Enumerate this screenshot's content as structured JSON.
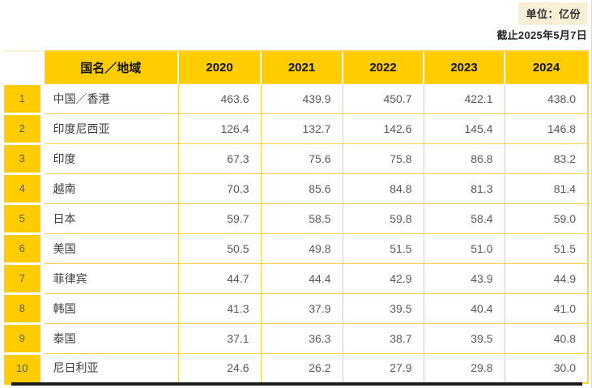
{
  "meta": {
    "unit_label": "单位：亿份",
    "as_of_label": "截止2025年5月7日"
  },
  "table": {
    "corner": "",
    "name_header": "国名／地域",
    "year_headers": [
      "2020",
      "2021",
      "2022",
      "2023",
      "2024"
    ],
    "rows": [
      {
        "rank": "1",
        "name": "中国／香港",
        "values": [
          "463.6",
          "439.9",
          "450.7",
          "422.1",
          "438.0"
        ]
      },
      {
        "rank": "2",
        "name": "印度尼西亚",
        "values": [
          "126.4",
          "132.7",
          "142.6",
          "145.4",
          "146.8"
        ]
      },
      {
        "rank": "3",
        "name": "印度",
        "values": [
          "67.3",
          "75.6",
          "75.8",
          "86.8",
          "83.2"
        ]
      },
      {
        "rank": "4",
        "name": "越南",
        "values": [
          "70.3",
          "85.6",
          "84.8",
          "81.3",
          "81.4"
        ]
      },
      {
        "rank": "5",
        "name": "日本",
        "values": [
          "59.7",
          "58.5",
          "59.8",
          "58.4",
          "59.0"
        ]
      },
      {
        "rank": "6",
        "name": "美国",
        "values": [
          "50.5",
          "49.8",
          "51.5",
          "51.0",
          "51.5"
        ]
      },
      {
        "rank": "7",
        "name": "菲律宾",
        "values": [
          "44.7",
          "44.4",
          "42.9",
          "43.9",
          "44.9"
        ]
      },
      {
        "rank": "8",
        "name": "韩国",
        "values": [
          "41.3",
          "37.9",
          "39.5",
          "40.4",
          "41.0"
        ]
      },
      {
        "rank": "9",
        "name": "泰国",
        "values": [
          "37.1",
          "36.3",
          "38.7",
          "39.5",
          "40.8"
        ]
      },
      {
        "rank": "10",
        "name": "尼日利亚",
        "values": [
          "24.6",
          "26.2",
          "27.9",
          "29.8",
          "30.0"
        ]
      }
    ]
  },
  "chart_data": {
    "type": "table",
    "title": "",
    "unit": "亿份",
    "as_of": "2025年5月7日",
    "columns": [
      "国名／地域",
      "2020",
      "2021",
      "2022",
      "2023",
      "2024"
    ],
    "rows": [
      [
        "中国／香港",
        463.6,
        439.9,
        450.7,
        422.1,
        438.0
      ],
      [
        "印度尼西亚",
        126.4,
        132.7,
        142.6,
        145.4,
        146.8
      ],
      [
        "印度",
        67.3,
        75.6,
        75.8,
        86.8,
        83.2
      ],
      [
        "越南",
        70.3,
        85.6,
        84.8,
        81.3,
        81.4
      ],
      [
        "日本",
        59.7,
        58.5,
        59.8,
        58.4,
        59.0
      ],
      [
        "美国",
        50.5,
        49.8,
        51.5,
        51.0,
        51.5
      ],
      [
        "菲律宾",
        44.7,
        44.4,
        42.9,
        43.9,
        44.9
      ],
      [
        "韩国",
        41.3,
        37.9,
        39.5,
        40.4,
        41.0
      ],
      [
        "泰国",
        37.1,
        36.3,
        38.7,
        39.5,
        40.8
      ],
      [
        "尼日利亚",
        24.6,
        26.2,
        27.9,
        29.8,
        30.0
      ]
    ]
  },
  "colors": {
    "header_yellow": "#ffcc00",
    "grid_yellow": "#ffd24a",
    "unit_badge_bg": "#f9eed6",
    "value_text": "#595959",
    "bottom_bar": "#1c1c1c"
  }
}
